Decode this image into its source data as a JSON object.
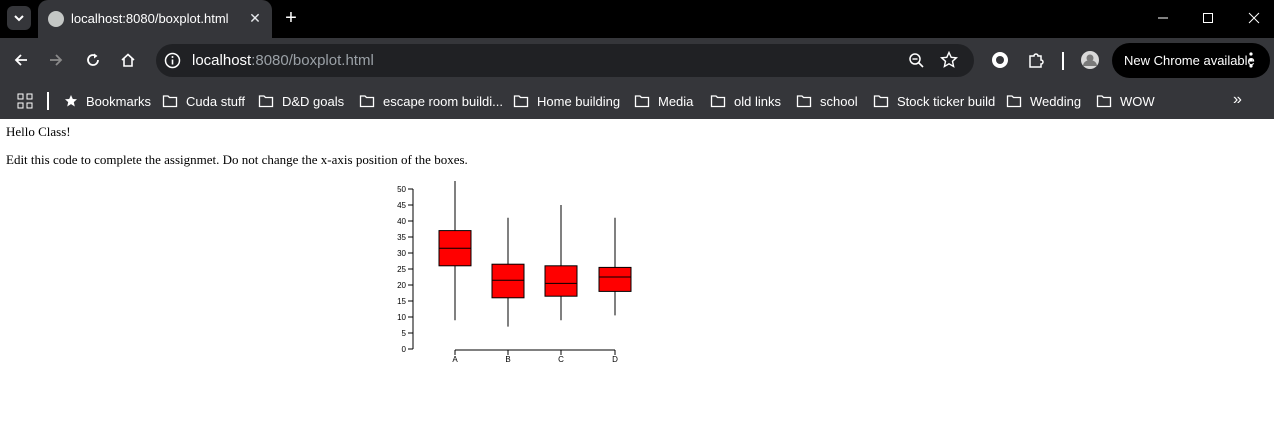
{
  "browser": {
    "tab_title": "localhost:8080/boxplot.html",
    "url_host": "localhost",
    "url_rest": ":8080/boxplot.html",
    "new_chrome_label": "New Chrome available",
    "bookmarks": [
      {
        "label": "Bookmarks",
        "icon": "star-icon"
      },
      {
        "label": "Cuda stuff",
        "icon": "folder-icon"
      },
      {
        "label": "D&D goals",
        "icon": "folder-icon"
      },
      {
        "label": "escape room buildi...",
        "icon": "folder-icon"
      },
      {
        "label": "Home building",
        "icon": "folder-icon"
      },
      {
        "label": "Media",
        "icon": "folder-icon"
      },
      {
        "label": "old links",
        "icon": "folder-icon"
      },
      {
        "label": "school",
        "icon": "folder-icon"
      },
      {
        "label": "Stock ticker build",
        "icon": "folder-icon"
      },
      {
        "label": "Wedding",
        "icon": "folder-icon"
      },
      {
        "label": "WOW",
        "icon": "folder-icon"
      }
    ]
  },
  "page": {
    "greeting": "Hello Class!",
    "instructions": "Edit this code to complete the assignmet. Do not change the x-axis position of the boxes."
  },
  "chart_data": {
    "type": "boxplot",
    "categories": [
      "A",
      "B",
      "C",
      "D"
    ],
    "boxes": [
      {
        "min": 9,
        "q1": 26,
        "median": 31.5,
        "q3": 37,
        "max": 52.5
      },
      {
        "min": 7,
        "q1": 16,
        "median": 21.5,
        "q3": 26.5,
        "max": 41
      },
      {
        "min": 9,
        "q1": 16.5,
        "median": 20.5,
        "q3": 26,
        "max": 45
      },
      {
        "min": 10.5,
        "q1": 18,
        "median": 22.5,
        "q3": 25.5,
        "max": 41
      }
    ],
    "yticks": [
      0,
      5,
      10,
      15,
      20,
      25,
      30,
      35,
      40,
      45,
      50
    ],
    "ylim": [
      0,
      50
    ],
    "box_color": "#ff0000",
    "title": "",
    "xlabel": "",
    "ylabel": ""
  }
}
